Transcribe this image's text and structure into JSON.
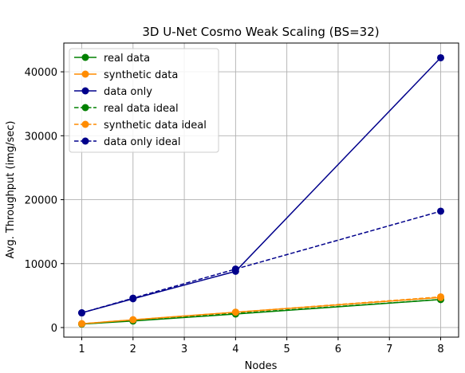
{
  "chart_data": {
    "type": "line",
    "title": "3D U-Net Cosmo Weak Scaling (BS=32)",
    "xlabel": "Nodes",
    "ylabel": "Avg. Throughput (img/sec)",
    "xlim": [
      0.65,
      8.35
    ],
    "ylim": [
      -1500,
      44500
    ],
    "xticks": [
      1,
      2,
      3,
      4,
      5,
      6,
      7,
      8
    ],
    "yticks": [
      0,
      10000,
      20000,
      30000,
      40000
    ],
    "grid": true,
    "legend_position": "top-left",
    "x": [
      1,
      2,
      4,
      8
    ],
    "series": [
      {
        "name": "real data",
        "values": [
          550,
          1020,
          2120,
          4380
        ],
        "color": "#008000",
        "dashed": false
      },
      {
        "name": "synthetic data",
        "values": [
          600,
          1220,
          2400,
          4700
        ],
        "color": "#ff8c00",
        "dashed": false
      },
      {
        "name": "data only",
        "values": [
          2300,
          4500,
          8800,
          42200
        ],
        "color": "#00008b",
        "dashed": false
      },
      {
        "name": "real data ideal",
        "values": [
          550,
          1100,
          2200,
          4400
        ],
        "color": "#008000",
        "dashed": true
      },
      {
        "name": "synthetic data ideal",
        "values": [
          600,
          1200,
          2400,
          4800
        ],
        "color": "#ff8c00",
        "dashed": true
      },
      {
        "name": "data only ideal",
        "values": [
          2300,
          4600,
          9150,
          18200
        ],
        "color": "#00008b",
        "dashed": true
      }
    ]
  }
}
